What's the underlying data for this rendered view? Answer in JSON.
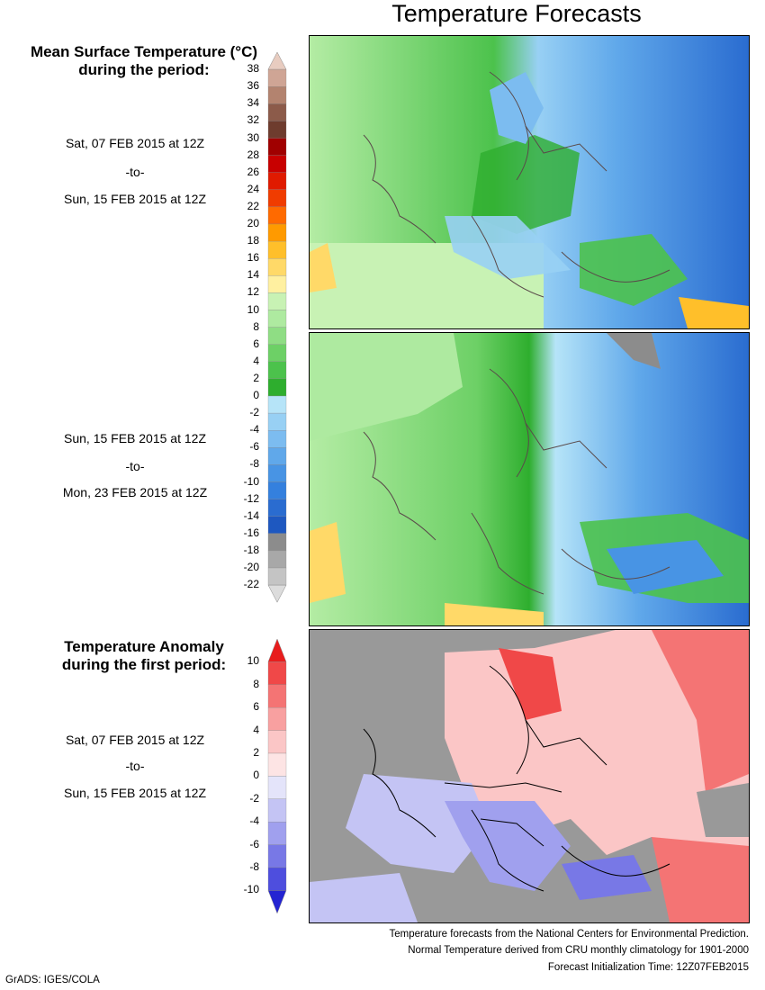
{
  "title": "Temperature Forecasts",
  "mean_title_line1": "Mean Surface Temperature (°C)",
  "mean_title_line2": "during the period:",
  "anomaly_title_line1": "Temperature Anomaly",
  "anomaly_title_line2": "during the first period:",
  "period1": {
    "start": "Sat, 07 FEB 2015 at 12Z",
    "sep": "-to-",
    "end": "Sun, 15 FEB 2015 at 12Z"
  },
  "period2": {
    "start": "Sun, 15 FEB 2015 at 12Z",
    "sep": "-to-",
    "end": "Mon, 23 FEB 2015 at 12Z"
  },
  "period3": {
    "start": "Sat, 07 FEB 2015 at 12Z",
    "sep": "-to-",
    "end": "Sun, 15 FEB 2015 at 12Z"
  },
  "temp_scale": {
    "labels": [
      "38",
      "36",
      "34",
      "32",
      "30",
      "28",
      "26",
      "24",
      "22",
      "20",
      "18",
      "16",
      "14",
      "12",
      "10",
      "8",
      "6",
      "4",
      "2",
      "0",
      "-2",
      "-4",
      "-6",
      "-8",
      "-10",
      "-12",
      "-14",
      "-16",
      "-18",
      "-20",
      "-22"
    ],
    "colors": [
      "#e8ccc0",
      "#cfa595",
      "#b3836f",
      "#8c5b4a",
      "#6e3c2e",
      "#a00000",
      "#c80000",
      "#e01a00",
      "#f03c00",
      "#ff6a00",
      "#ff9a00",
      "#ffbf2a",
      "#ffd968",
      "#fff0a0",
      "#c8f2b4",
      "#aeeaa0",
      "#8fdd84",
      "#6dd066",
      "#4cc24c",
      "#2eae2e",
      "#b6e4f8",
      "#98d0f4",
      "#7cbcf0",
      "#60a8ea",
      "#4894e4",
      "#3480de",
      "#2a6cd0",
      "#1e58c0",
      "#8c8c8c",
      "#a8a8a8",
      "#c4c4c4",
      "#dcdcdc"
    ]
  },
  "anomaly_scale": {
    "labels": [
      "10",
      "8",
      "6",
      "4",
      "2",
      "0",
      "-2",
      "-4",
      "-6",
      "-8",
      "-10"
    ],
    "colors": [
      "#e81c1c",
      "#f04848",
      "#f47474",
      "#f8a0a0",
      "#fbc6c6",
      "#fde4e4",
      "#e4e4fa",
      "#c4c4f4",
      "#a0a0ee",
      "#7878e6",
      "#4e4ede",
      "#2424d2"
    ]
  },
  "footer": {
    "line1": "Temperature forecasts from the National Centers for Environmental Prediction.",
    "line2": "Normal Temperature derived from CRU monthly climatology for 1901-2000",
    "line3": "Forecast Initialization Time: 12Z07FEB2015"
  },
  "credit": "GrADS: IGES/COLA"
}
